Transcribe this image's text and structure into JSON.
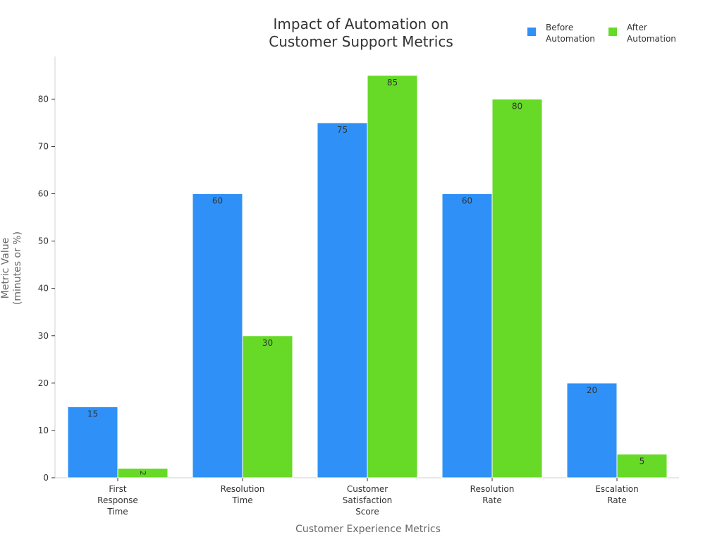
{
  "chart_data": {
    "type": "bar",
    "title": "Impact of Automation on\nCustomer Support Metrics",
    "xlabel": "Customer Experience Metrics",
    "ylabel": "Metric Value\n(minutes or %)",
    "categories": [
      "First\nResponse\nTime",
      "Resolution\nTime",
      "Customer\nSatisfaction\nScore",
      "Resolution\nRate",
      "Escalation\nRate"
    ],
    "series": [
      {
        "name": "Before\nAutomation",
        "color": "#2f91f7",
        "values": [
          15,
          60,
          75,
          60,
          20
        ]
      },
      {
        "name": "After\nAutomation",
        "color": "#66da26",
        "values": [
          2,
          30,
          85,
          80,
          5
        ]
      }
    ],
    "ylim": [
      0,
      89
    ],
    "yticks": [
      0,
      10,
      20,
      30,
      40,
      50,
      60,
      70,
      80
    ],
    "legend_position": "top-right",
    "grid": false,
    "data_labels": true
  }
}
